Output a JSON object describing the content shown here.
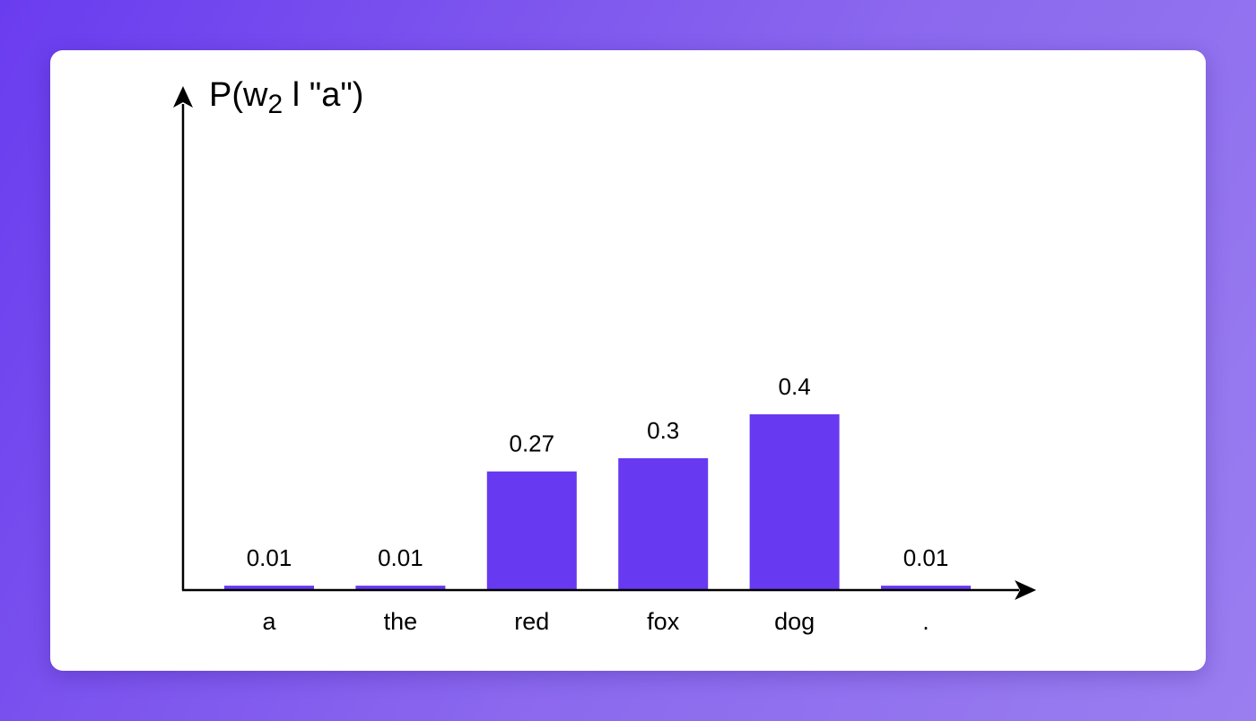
{
  "chart_data": {
    "type": "bar",
    "ylabel_parts": {
      "pre": "P(w",
      "sub": "2",
      "post": " l \"a\")"
    },
    "categories": [
      "a",
      "the",
      "red",
      "fox",
      "dog",
      "."
    ],
    "values": [
      0.01,
      0.01,
      0.27,
      0.3,
      0.4,
      0.01
    ],
    "data_labels": [
      "0.01",
      "0.01",
      "0.27",
      "0.3",
      "0.4",
      "0.01"
    ],
    "ylim": [
      0,
      0.5
    ],
    "grid": false,
    "legend": "none"
  },
  "colors": {
    "bar": "#6739f0",
    "axis": "#000000",
    "card": "#ffffff"
  }
}
